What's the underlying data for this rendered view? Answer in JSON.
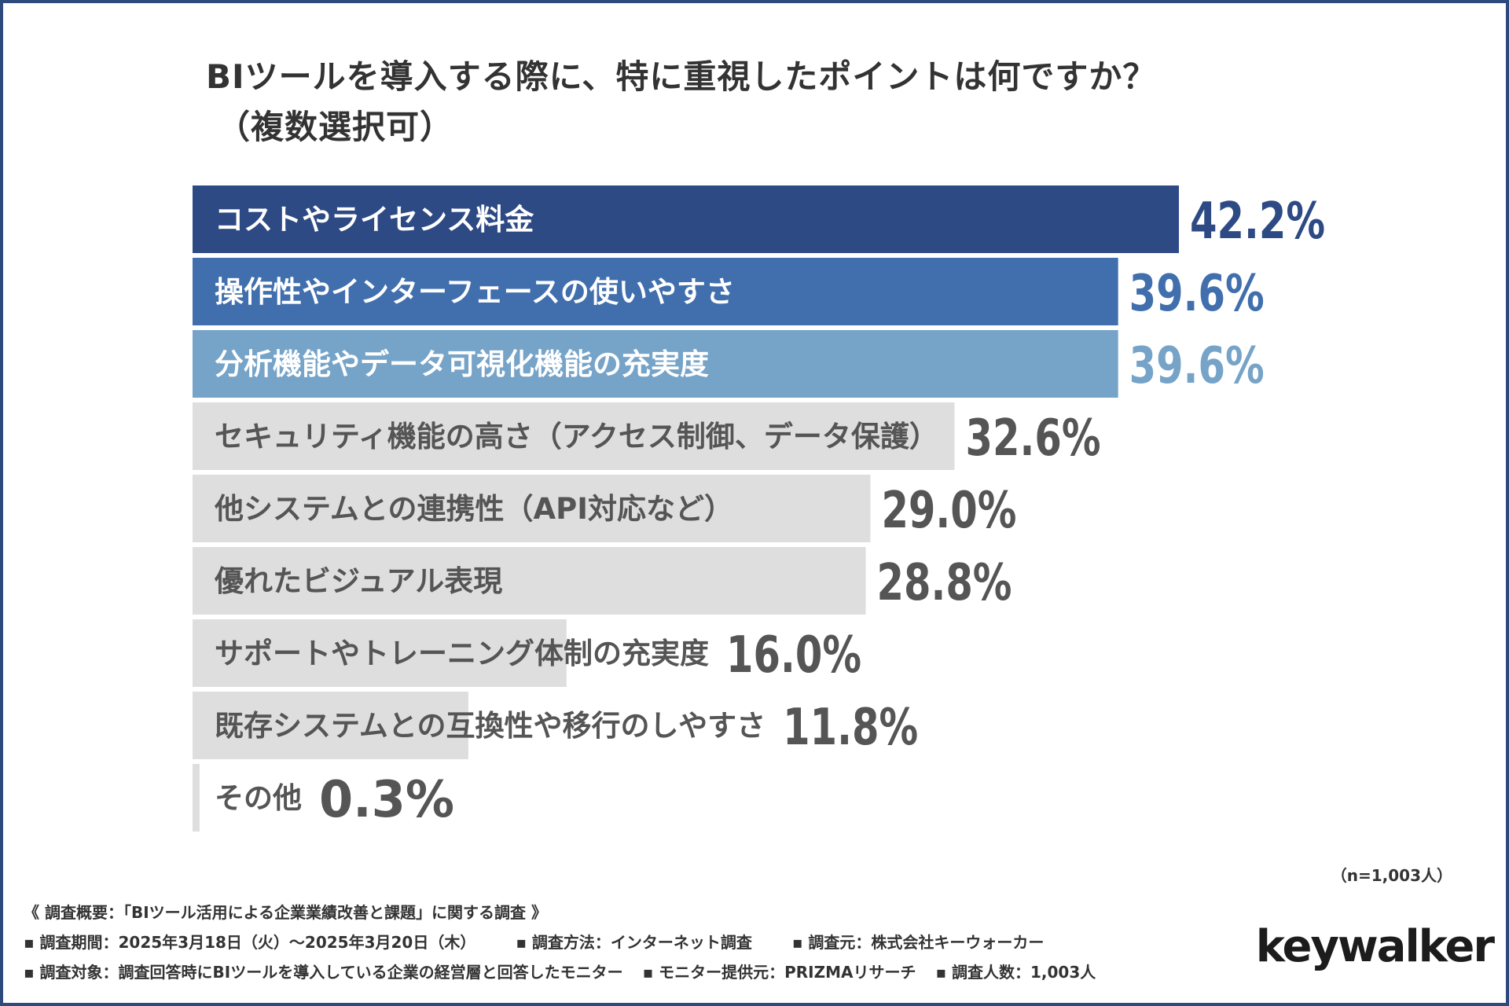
{
  "title": {
    "line1": "BIツールを導入する際に、特に重視したポイントは何ですか？",
    "line2": "（複数選択可）"
  },
  "chart_data": {
    "type": "bar",
    "orientation": "horizontal",
    "title": "BIツールを導入する際に、特に重視したポイントは何ですか？（複数選択可）",
    "categories": [
      "コストやライセンス料金",
      "操作性やインターフェースの使いやすさ",
      "分析機能やデータ可視化機能の充実度",
      "セキュリティ機能の高さ（アクセス制御、データ保護）",
      "他システムとの連携性（API対応など）",
      "優れたビジュアル表現",
      "サポートやトレーニング体制の充実度",
      "既存システムとの互換性や移行のしやすさ",
      "その他"
    ],
    "values": [
      42.2,
      39.6,
      39.6,
      32.6,
      29.0,
      28.8,
      16.0,
      11.8,
      0.3
    ],
    "value_labels": [
      "42.2%",
      "39.6%",
      "39.6%",
      "32.6%",
      "29.0%",
      "28.8%",
      "16.0%",
      "11.8%",
      "0.3%"
    ],
    "unit": "%",
    "xlim": [
      0,
      42.2
    ],
    "bar_colors": [
      "#2e4a84",
      "#416fae",
      "#76a3c8",
      "#dedede",
      "#dedede",
      "#dedede",
      "#dedede",
      "#dedede",
      "#dedede"
    ],
    "label_colors": [
      "#ffffff",
      "#ffffff",
      "#ffffff",
      "#555555",
      "#555555",
      "#555555",
      "#555555",
      "#555555",
      "#555555"
    ],
    "value_colors": [
      "#2e4a84",
      "#416fae",
      "#76a3c8",
      "#555555",
      "#555555",
      "#555555",
      "#555555",
      "#555555",
      "#555555"
    ]
  },
  "sample_note": "（n=1,003人）",
  "footer": {
    "overview": "《 調査概要：「BIツール活用による企業業績改善と課題」に関する調査 》",
    "period": "▪ 調査期間：2025年3月18日（火）～2025年3月20日（木）",
    "method": "▪ 調査方法：インターネット調査",
    "source": "▪ 調査元：株式会社キーウォーカー",
    "target": "▪ 調査対象：調査回答時にBIツールを導入している企業の経営層と回答したモニター",
    "provider": "▪ モニター提供元：PRIZMAリサーチ",
    "count": "▪ 調査人数：1,003人"
  },
  "logo": {
    "text": "keywalker"
  }
}
